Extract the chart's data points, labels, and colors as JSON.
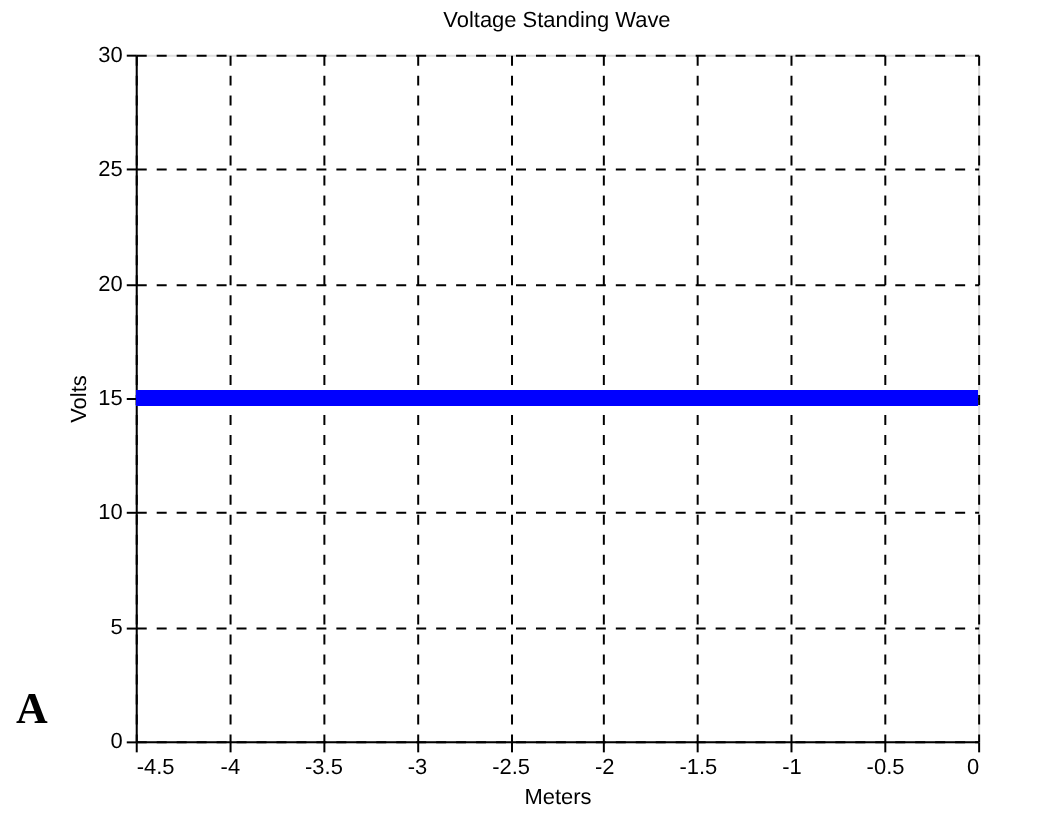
{
  "chart_data": {
    "type": "line",
    "title": "Voltage Standing Wave",
    "xlabel": "Meters",
    "ylabel": "Volts",
    "annotations": [
      "A"
    ],
    "x": [
      -4.5,
      0
    ],
    "series": [
      {
        "color": "#0000ff",
        "values": [
          15,
          15
        ]
      }
    ],
    "xlim": [
      -4.5,
      0
    ],
    "xticks": [
      -4.5,
      -4,
      -3.5,
      -3,
      -2.5,
      -2,
      -1.5,
      -1,
      -0.5,
      0
    ],
    "ylim": [
      0,
      30
    ],
    "yticks": [
      0,
      5,
      10,
      15,
      20,
      25,
      30
    ],
    "grid": true,
    "marker": "none",
    "line_style": "solid"
  }
}
